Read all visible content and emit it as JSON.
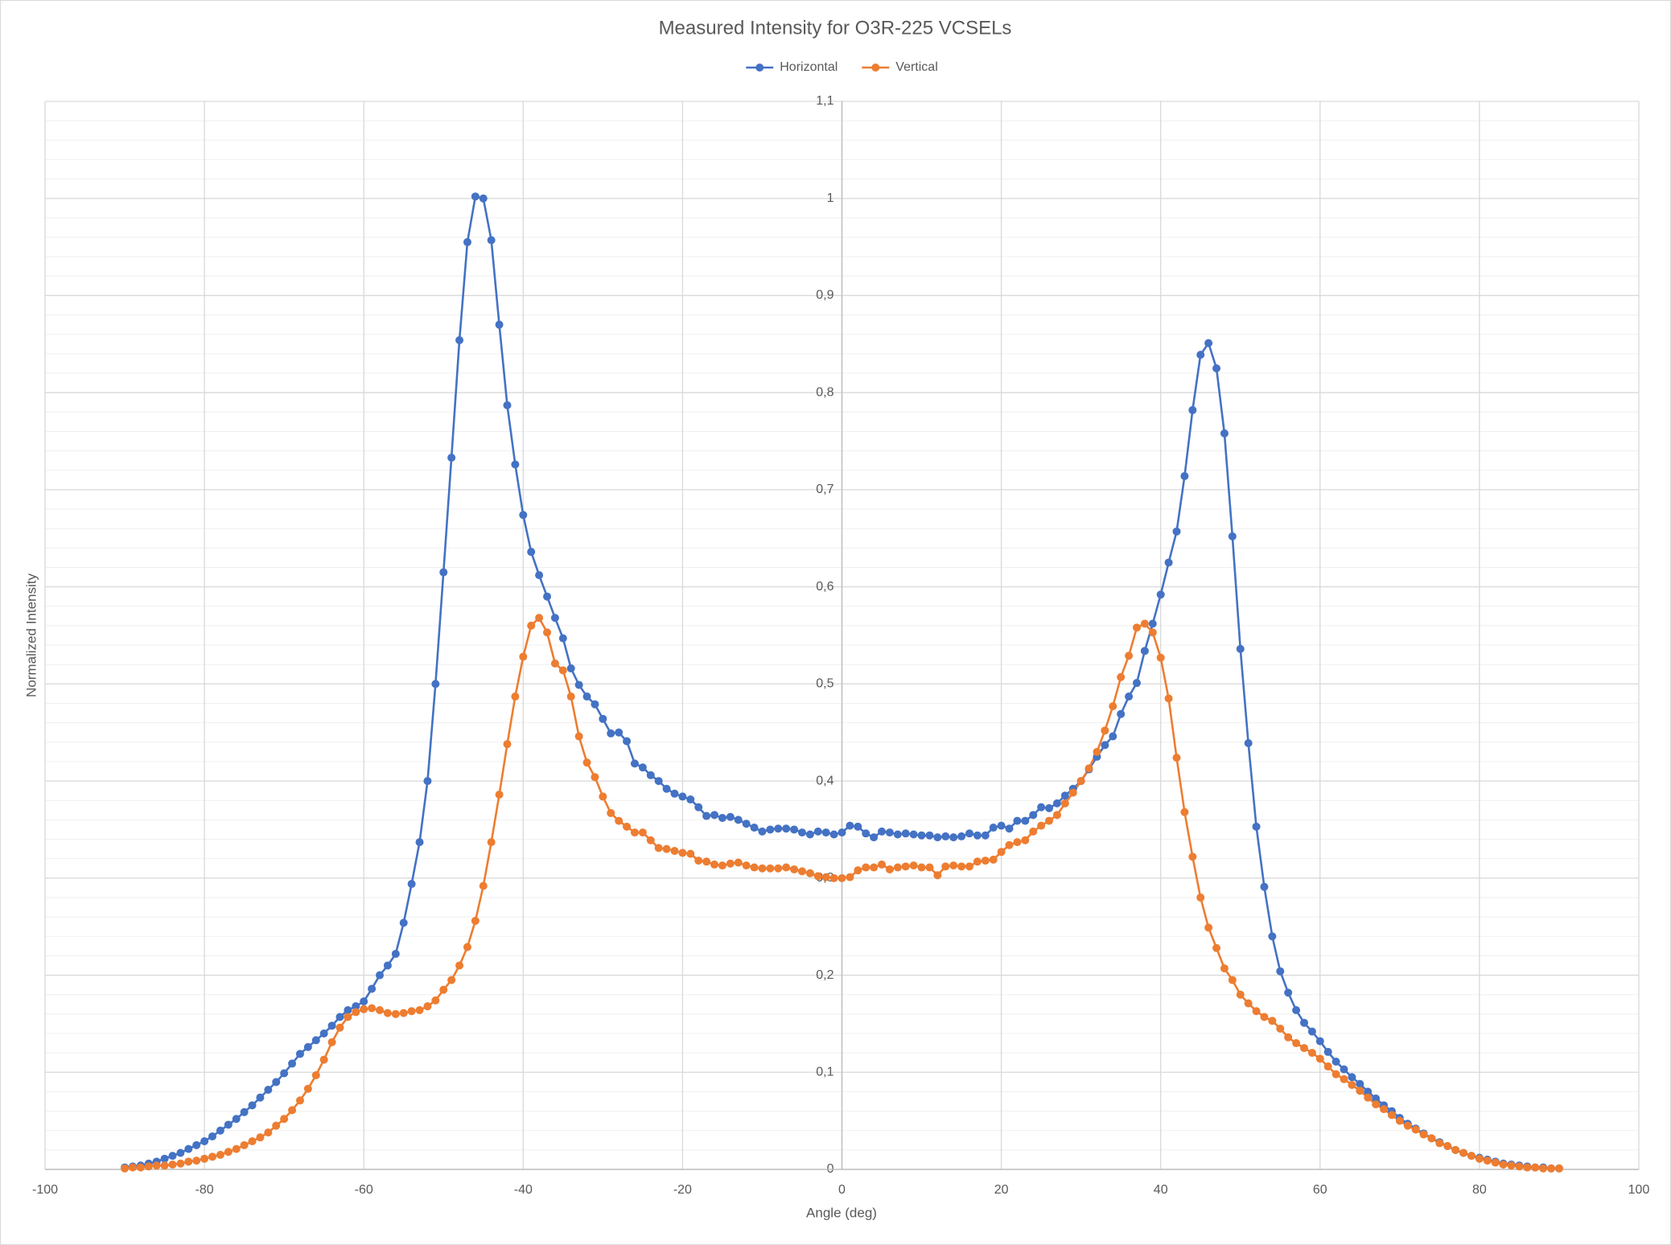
{
  "chart_data": {
    "type": "line",
    "title": "Measured Intensity for O3R-225 VCSELs",
    "x_label": "Angle (deg)",
    "y_label": "Normalized Intensity",
    "legend": "top",
    "grid": true,
    "minor_grid": true,
    "xlim": [
      -100,
      100
    ],
    "xticks": [
      -100,
      -80,
      -60,
      -40,
      -20,
      0,
      20,
      40,
      60,
      80,
      100
    ],
    "ylim": [
      0,
      1.1
    ],
    "yticks": [
      0,
      {
        "value": 0.1,
        "label": "0,1"
      },
      {
        "value": 0.2,
        "label": "0,2"
      },
      {
        "value": 0.3,
        "label": "0,3"
      },
      {
        "value": 0.4,
        "label": "0,4"
      },
      {
        "value": 0.5,
        "label": "0,5"
      },
      {
        "value": 0.6,
        "label": "0,6"
      },
      {
        "value": 0.7,
        "label": "0,7"
      },
      {
        "value": 0.8,
        "label": "0,8"
      },
      {
        "value": 0.9,
        "label": "0,9"
      },
      1,
      {
        "value": 1.1,
        "label": "1,1"
      }
    ],
    "x": [
      -90,
      -89,
      -88,
      -87,
      -86,
      -85,
      -84,
      -83,
      -82,
      -81,
      -80,
      -79,
      -78,
      -77,
      -76,
      -75,
      -74,
      -73,
      -72,
      -71,
      -70,
      -69,
      -68,
      -67,
      -66,
      -65,
      -64,
      -63,
      -62,
      -61,
      -60,
      -59,
      -58,
      -57,
      -56,
      -55,
      -54,
      -53,
      -52,
      -51,
      -50,
      -49,
      -48,
      -47,
      -46,
      -45,
      -44,
      -43,
      -42,
      -41,
      -40,
      -39,
      -38,
      -37,
      -36,
      -35,
      -34,
      -33,
      -32,
      -31,
      -30,
      -29,
      -28,
      -27,
      -26,
      -25,
      -24,
      -23,
      -22,
      -21,
      -20,
      -19,
      -18,
      -17,
      -16,
      -15,
      -14,
      -13,
      -12,
      -11,
      -10,
      -9,
      -8,
      -7,
      -6,
      -5,
      -4,
      -3,
      -2,
      -1,
      0,
      1,
      2,
      3,
      4,
      5,
      6,
      7,
      8,
      9,
      10,
      11,
      12,
      13,
      14,
      15,
      16,
      17,
      18,
      19,
      20,
      21,
      22,
      23,
      24,
      25,
      26,
      27,
      28,
      29,
      30,
      31,
      32,
      33,
      34,
      35,
      36,
      37,
      38,
      39,
      40,
      41,
      42,
      43,
      44,
      45,
      46,
      47,
      48,
      49,
      50,
      51,
      52,
      53,
      54,
      55,
      56,
      57,
      58,
      59,
      60,
      61,
      62,
      63,
      64,
      65,
      66,
      67,
      68,
      69,
      70,
      71,
      72,
      73,
      74,
      75,
      76,
      77,
      78,
      79,
      80,
      81,
      82,
      83,
      84,
      85,
      86,
      87,
      88,
      89,
      90
    ],
    "series": [
      {
        "name": "Horizontal",
        "color": "#4472c4",
        "values": [
          0.002,
          0.003,
          0.004,
          0.006,
          0.008,
          0.011,
          0.014,
          0.017,
          0.021,
          0.025,
          0.029,
          0.034,
          0.04,
          0.046,
          0.052,
          0.059,
          0.066,
          0.074,
          0.082,
          0.09,
          0.099,
          0.109,
          0.119,
          0.126,
          0.133,
          0.14,
          0.148,
          0.157,
          0.164,
          0.168,
          0.173,
          0.186,
          0.2,
          0.21,
          0.222,
          0.254,
          0.294,
          0.337,
          0.4,
          0.5,
          0.615,
          0.733,
          0.854,
          0.955,
          1.002,
          1.0,
          0.957,
          0.87,
          0.787,
          0.726,
          0.674,
          0.636,
          0.612,
          0.59,
          0.568,
          0.547,
          0.516,
          0.499,
          0.487,
          0.479,
          0.464,
          0.449,
          0.45,
          0.441,
          0.418,
          0.414,
          0.406,
          0.4,
          0.392,
          0.387,
          0.384,
          0.381,
          0.373,
          0.364,
          0.365,
          0.362,
          0.363,
          0.36,
          0.356,
          0.352,
          0.348,
          0.35,
          0.351,
          0.351,
          0.35,
          0.347,
          0.345,
          0.348,
          0.347,
          0.345,
          0.347,
          0.354,
          0.353,
          0.346,
          0.342,
          0.348,
          0.347,
          0.345,
          0.346,
          0.345,
          0.344,
          0.344,
          0.342,
          0.343,
          0.342,
          0.343,
          0.346,
          0.344,
          0.344,
          0.352,
          0.354,
          0.351,
          0.359,
          0.359,
          0.365,
          0.373,
          0.372,
          0.377,
          0.385,
          0.392,
          0.4,
          0.412,
          0.425,
          0.437,
          0.446,
          0.469,
          0.487,
          0.501,
          0.534,
          0.562,
          0.592,
          0.625,
          0.657,
          0.714,
          0.782,
          0.839,
          0.851,
          0.825,
          0.758,
          0.652,
          0.536,
          0.439,
          0.353,
          0.291,
          0.24,
          0.204,
          0.182,
          0.164,
          0.151,
          0.142,
          0.132,
          0.121,
          0.111,
          0.103,
          0.095,
          0.088,
          0.08,
          0.073,
          0.066,
          0.06,
          0.053,
          0.047,
          0.042,
          0.037,
          0.032,
          0.028,
          0.024,
          0.02,
          0.017,
          0.014,
          0.012,
          0.01,
          0.008,
          0.006,
          0.005,
          0.004,
          0.003,
          0.002,
          0.002,
          0.001,
          0.001
        ]
      },
      {
        "name": "Vertical",
        "color": "#ed7d31",
        "values": [
          0.001,
          0.002,
          0.002,
          0.003,
          0.004,
          0.004,
          0.005,
          0.006,
          0.008,
          0.009,
          0.011,
          0.013,
          0.015,
          0.018,
          0.021,
          0.025,
          0.029,
          0.033,
          0.038,
          0.045,
          0.052,
          0.061,
          0.071,
          0.083,
          0.097,
          0.113,
          0.131,
          0.146,
          0.157,
          0.162,
          0.165,
          0.166,
          0.164,
          0.161,
          0.16,
          0.161,
          0.163,
          0.164,
          0.168,
          0.174,
          0.185,
          0.195,
          0.21,
          0.229,
          0.256,
          0.292,
          0.337,
          0.386,
          0.438,
          0.487,
          0.528,
          0.56,
          0.568,
          0.553,
          0.521,
          0.514,
          0.487,
          0.446,
          0.419,
          0.404,
          0.384,
          0.367,
          0.359,
          0.353,
          0.347,
          0.347,
          0.339,
          0.331,
          0.33,
          0.328,
          0.326,
          0.325,
          0.318,
          0.317,
          0.314,
          0.313,
          0.315,
          0.316,
          0.313,
          0.311,
          0.31,
          0.31,
          0.31,
          0.311,
          0.309,
          0.307,
          0.305,
          0.302,
          0.301,
          0.3,
          0.3,
          0.301,
          0.308,
          0.311,
          0.311,
          0.314,
          0.309,
          0.311,
          0.312,
          0.313,
          0.311,
          0.311,
          0.303,
          0.312,
          0.313,
          0.312,
          0.312,
          0.317,
          0.318,
          0.319,
          0.327,
          0.334,
          0.337,
          0.339,
          0.348,
          0.354,
          0.359,
          0.365,
          0.377,
          0.388,
          0.4,
          0.413,
          0.43,
          0.452,
          0.477,
          0.507,
          0.529,
          0.558,
          0.562,
          0.553,
          0.527,
          0.485,
          0.424,
          0.368,
          0.322,
          0.28,
          0.249,
          0.228,
          0.207,
          0.195,
          0.18,
          0.171,
          0.163,
          0.157,
          0.153,
          0.145,
          0.136,
          0.13,
          0.125,
          0.12,
          0.114,
          0.106,
          0.098,
          0.093,
          0.087,
          0.081,
          0.074,
          0.067,
          0.062,
          0.056,
          0.05,
          0.045,
          0.041,
          0.036,
          0.032,
          0.027,
          0.024,
          0.02,
          0.017,
          0.014,
          0.011,
          0.009,
          0.007,
          0.005,
          0.004,
          0.003,
          0.002,
          0.002,
          0.001,
          0.001,
          0.001
        ]
      }
    ]
  }
}
